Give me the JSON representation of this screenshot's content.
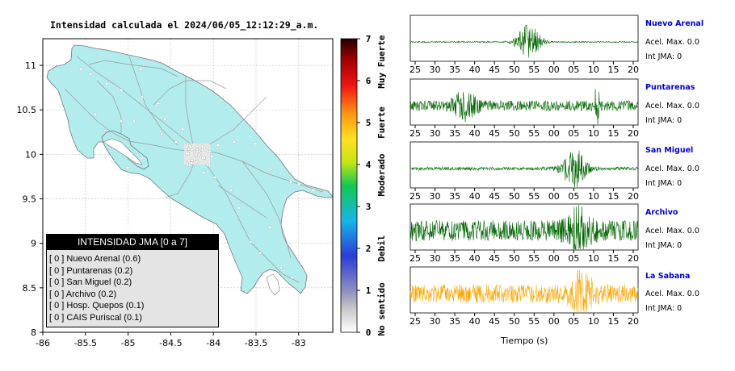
{
  "map_title": "Intensidad calculada el 2024/06/05_12:12:29_a.m.",
  "legend": {
    "title": "INTENSIDAD JMA [0 a 7]",
    "items": [
      "[ 0 ]  Nuevo Arenal (0.6)",
      "[ 0 ]  Puntarenas (0.2)",
      "[ 0 ]  San Miguel (0.2)",
      "[ 0 ]  Archivo (0.2)",
      "[ 0 ]  Hosp. Quepos (0.1)",
      "[ 0 ]  CAIS Puriscal (0.1)"
    ]
  },
  "colorbar": {
    "ticks": [
      "0",
      "1",
      "2",
      "3",
      "4",
      "5",
      "6",
      "7"
    ],
    "labels": [
      "No sentido",
      "Debil",
      "Moderado",
      "Fuerte",
      "Muy Fuerte"
    ]
  },
  "waveform_x_title": "Tiempo (s)",
  "stations": [
    {
      "name": "Nuevo Arenal",
      "acel": "Acel. Max. 0.0",
      "jma": "Int JMA: 0"
    },
    {
      "name": "Puntarenas",
      "acel": "Acel. Max. 0.0",
      "jma": "Int JMA: 0"
    },
    {
      "name": "San Miguel",
      "acel": "Acel. Max. 0.0",
      "jma": "Int JMA: 0"
    },
    {
      "name": "Archivo",
      "acel": "Acel. Max. 0.0",
      "jma": "Int JMA: 0"
    },
    {
      "name": "La Sabana",
      "acel": "Acel. Max. 0.0",
      "jma": "Int JMA: 0"
    }
  ],
  "chart_data": [
    {
      "type": "map",
      "title": "Intensidad calculada el 2024/06/05_12:12:29_a.m.",
      "xlim": [
        -86,
        -82.6
      ],
      "ylim": [
        8,
        11.3
      ],
      "x_ticks": [
        "-86",
        "-85.5",
        "-85",
        "-84.5",
        "-84",
        "-83.5",
        "-83"
      ],
      "x_tick_values": [
        -86,
        -85.5,
        -85,
        -84.5,
        -84,
        -83.5,
        -83
      ],
      "y_ticks": [
        "8",
        "8.5",
        "9",
        "9.5",
        "10",
        "10.5",
        "11"
      ],
      "y_tick_values": [
        8,
        8.5,
        9,
        9.5,
        10,
        10.5,
        11
      ],
      "land_color": "#b2ecec",
      "grid": true
    },
    {
      "type": "line",
      "subtype": "seismogram",
      "xlabel": "Tiempo (s)",
      "trace_colors": [
        "#006400",
        "#006400",
        "#006400",
        "#006400",
        "#ffa500"
      ],
      "panels": [
        {
          "station": "Nuevo Arenal",
          "ticks": [
            "25",
            "30",
            "35",
            "40",
            "45",
            "50",
            "55",
            "00",
            "05",
            "10",
            "15",
            "20"
          ],
          "burst_center": 0.52,
          "background_noise": 0.03,
          "burst_amplitude": 0.85
        },
        {
          "station": "Puntarenas",
          "ticks": [
            "25",
            "30",
            "35",
            "40",
            "45",
            "50",
            "55",
            "00",
            "05",
            "10",
            "15",
            "20"
          ],
          "burst_center": 0.24,
          "background_noise": 0.25,
          "burst_amplitude": 0.6
        },
        {
          "station": "San Miguel",
          "ticks": [
            "25",
            "30",
            "35",
            "40",
            "45",
            "50",
            "55",
            "00",
            "05",
            "10",
            "15",
            "20"
          ],
          "burst_center": 0.72,
          "background_noise": 0.08,
          "burst_amplitude": 0.95
        },
        {
          "station": "Archivo",
          "ticks": [
            "25",
            "30",
            "35",
            "40",
            "45",
            "50",
            "55",
            "00",
            "05",
            "10",
            "15",
            "20"
          ],
          "burst_center": 0.74,
          "background_noise": 0.5,
          "burst_amplitude": 0.9
        },
        {
          "station": "La Sabana",
          "ticks": [
            "25",
            "30",
            "35",
            "40",
            "45",
            "50",
            "55",
            "00",
            "05",
            "10",
            "15",
            "20"
          ],
          "burst_center": 0.75,
          "background_noise": 0.45,
          "burst_amplitude": 0.8
        }
      ]
    }
  ]
}
